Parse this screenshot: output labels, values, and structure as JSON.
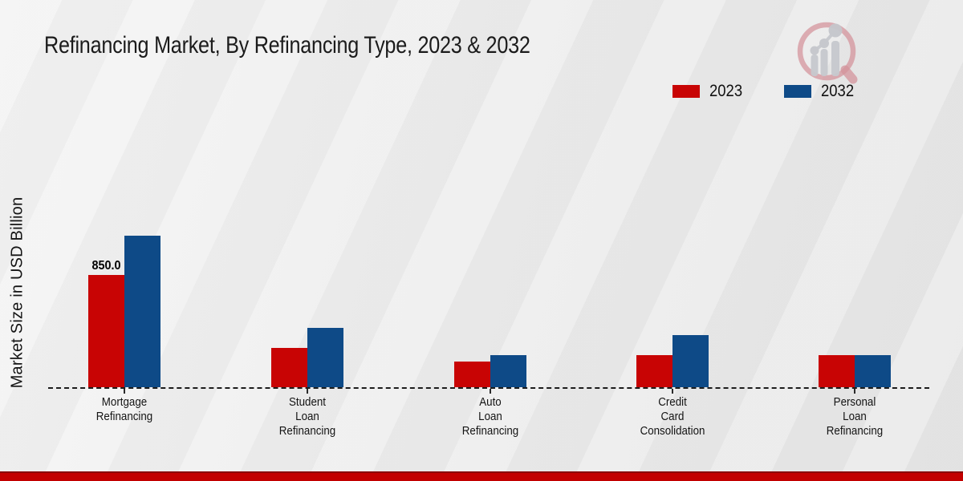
{
  "header": {
    "title": "Refinancing Market, By Refinancing Type, 2023 & 2032"
  },
  "legend": {
    "items": [
      {
        "label": "2023",
        "color": "#c80404"
      },
      {
        "label": "2032",
        "color": "#0e4a87"
      }
    ]
  },
  "chart_data": {
    "type": "bar",
    "title": "Refinancing Market, By Refinancing Type, 2023 & 2032",
    "categories": [
      "Mortgage Refinancing",
      "Student Loan Refinancing",
      "Auto Loan Refinancing",
      "Credit Card Consolidation",
      "Personal Loan Refinancing"
    ],
    "category_label_lines": [
      [
        "Mortgage",
        "Refinancing"
      ],
      [
        "Student",
        "Loan",
        "Refinancing"
      ],
      [
        "Auto",
        "Loan",
        "Refinancing"
      ],
      [
        "Credit",
        "Card",
        "Consolidation"
      ],
      [
        "Personal",
        "Loan",
        "Refinancing"
      ]
    ],
    "series": [
      {
        "name": "2023",
        "color": "#c80404",
        "values": [
          850,
          300,
          195,
          245,
          240
        ]
      },
      {
        "name": "2032",
        "color": "#0e4a87",
        "values": [
          1150,
          450,
          245,
          395,
          245
        ]
      }
    ],
    "xlabel": "",
    "ylabel": "Market Size in USD Billion",
    "ylim": [
      0,
      1250
    ],
    "grid": false,
    "y_axis_ticks_visible": false,
    "legend_position": "top-right",
    "annotations": [
      {
        "series": "2023",
        "category": "Mortgage Refinancing",
        "text": "850.0"
      }
    ]
  },
  "footer": {
    "accent_color": "#c20000"
  },
  "logo": {
    "name": "magnifier-bar-chart-logo",
    "ring_color": "#d4949c",
    "bars_color": "#c7c9ce"
  }
}
